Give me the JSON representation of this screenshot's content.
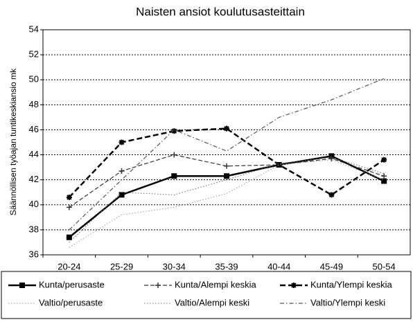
{
  "chart_data": {
    "type": "line",
    "title": "Naisten ansiot koulutusasteittain",
    "y_label": "Säännöllisen työajan tuntikeskiansio mk",
    "categories": [
      "20-24",
      "25-29",
      "30-34",
      "35-39",
      "40-44",
      "45-49",
      "50-54"
    ],
    "ylim": [
      36,
      54
    ],
    "yticks": [
      36,
      38,
      40,
      42,
      44,
      46,
      48,
      50,
      52,
      54
    ],
    "grid": true,
    "legend": "bottom",
    "series": [
      {
        "name": "Kunta/perusaste",
        "color": "#000000",
        "line_style": "solid",
        "marker": "square",
        "values": [
          37.4,
          40.8,
          42.3,
          42.3,
          43.2,
          43.9,
          41.9
        ]
      },
      {
        "name": "Kunta/Alempi keskia",
        "color": "#333333",
        "line_style": "dash",
        "marker": "plus",
        "values": [
          39.8,
          42.7,
          44.0,
          43.1,
          43.2,
          43.7,
          42.3
        ]
      },
      {
        "name": "Kunta/Ylempi keskia",
        "color": "#000000",
        "line_style": "longdash",
        "marker": "star",
        "values": [
          40.6,
          45.0,
          45.9,
          46.1,
          43.2,
          40.8,
          43.6
        ]
      },
      {
        "name": "Valtio/perusaste",
        "color": "#999999",
        "line_style": "dot",
        "values": [
          36.6,
          39.2,
          39.8,
          40.9,
          43.2,
          43.6,
          42.0
        ]
      },
      {
        "name": "Valtio/Alempi keski",
        "color": "#666666",
        "line_style": "dot",
        "values": [
          37.0,
          41.0,
          40.8,
          42.0,
          43.3,
          43.8,
          42.5
        ]
      },
      {
        "name": "Valtio/Ylempi keski",
        "color": "#555555",
        "line_style": "dashdot",
        "values": [
          38.0,
          42.0,
          46.0,
          44.3,
          47.0,
          48.4,
          50.1
        ]
      }
    ]
  }
}
